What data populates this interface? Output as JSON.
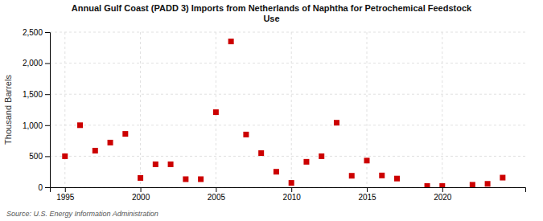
{
  "chart_data": {
    "type": "scatter",
    "title": "Annual Gulf Coast (PADD 3) Imports from Netherlands of Naphtha for Petrochemical Feedstock\nUse",
    "y_label": "Thousand Barrels",
    "annotations": [
      "Source: U.S. Energy Information Administration"
    ],
    "x": [
      1995,
      1996,
      1997,
      1998,
      1999,
      2000,
      2001,
      2002,
      2003,
      2004,
      2005,
      2006,
      2007,
      2008,
      2009,
      2010,
      2011,
      2012,
      2013,
      2014,
      2015,
      2016,
      2017,
      2019,
      2020,
      2022,
      2023,
      2024
    ],
    "values": [
      500,
      1000,
      590,
      720,
      860,
      150,
      370,
      370,
      130,
      130,
      1210,
      2350,
      850,
      550,
      250,
      70,
      410,
      500,
      1040,
      185,
      430,
      190,
      140,
      20,
      20,
      40,
      55,
      155
    ],
    "color": "#cc0000",
    "marker": "square",
    "xlim": [
      1994.0,
      2025.5
    ],
    "ylim": [
      0,
      2500
    ],
    "xticks": [
      1995,
      2000,
      2005,
      2010,
      2015,
      2020
    ],
    "yticks": [
      0,
      500,
      {
        "value": 1000,
        "label": "1,000"
      },
      {
        "value": 1500,
        "label": "1,500"
      },
      {
        "value": 2000,
        "label": "2,000"
      },
      {
        "value": 2500,
        "label": "2,500"
      }
    ],
    "grid": true
  }
}
